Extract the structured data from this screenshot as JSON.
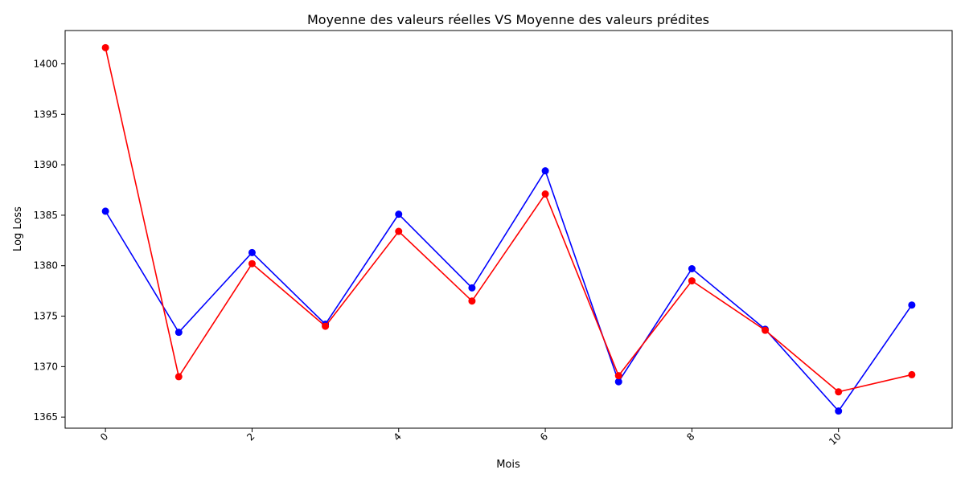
{
  "chart_data": {
    "type": "line",
    "title": "Moyenne des valeurs réelles VS Moyenne des valeurs prédites",
    "xlabel": "Mois",
    "ylabel": "Log Loss",
    "x": [
      0,
      1,
      2,
      3,
      4,
      5,
      6,
      7,
      8,
      9,
      10,
      11
    ],
    "xlim": [
      -0.55,
      11.55
    ],
    "ylim": [
      1363.9,
      1403.3
    ],
    "xticks": [
      0,
      2,
      4,
      6,
      8,
      10
    ],
    "yticks": [
      1365,
      1370,
      1375,
      1380,
      1385,
      1390,
      1395,
      1400
    ],
    "grid": false,
    "series": [
      {
        "color": "#0000ff",
        "marker": "circle",
        "values": [
          1385.4,
          1373.4,
          1381.3,
          1374.2,
          1385.1,
          1377.8,
          1389.4,
          1368.5,
          1379.7,
          1373.7,
          1365.6,
          1376.1
        ]
      },
      {
        "color": "#ff0000",
        "marker": "circle",
        "values": [
          1401.6,
          1369.0,
          1380.2,
          1374.0,
          1383.4,
          1376.5,
          1387.1,
          1369.1,
          1378.5,
          1373.6,
          1367.5,
          1369.2
        ]
      }
    ]
  }
}
